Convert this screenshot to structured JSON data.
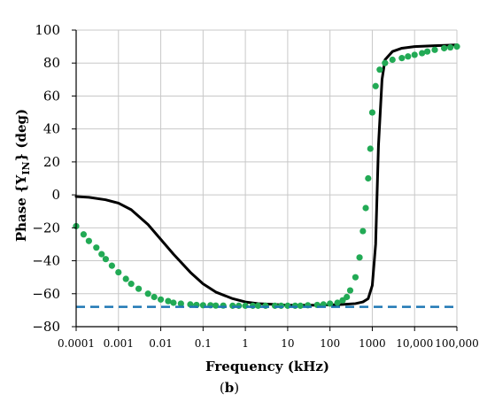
{
  "chart_data": {
    "type": "line",
    "xlabel": "Frequency (kHz)",
    "ylabel_prefix": "Phase {Y",
    "ylabel_sub": "IN",
    "ylabel_suffix": "} (deg)",
    "x_scale": "log",
    "xlim": [
      0.0001,
      100000
    ],
    "ylim": [
      -80,
      100
    ],
    "grid": true,
    "x_ticks": [
      {
        "value": 0.0001,
        "label": "0.0001"
      },
      {
        "value": 0.001,
        "label": "0.001"
      },
      {
        "value": 0.01,
        "label": "0.01"
      },
      {
        "value": 0.1,
        "label": "0.1"
      },
      {
        "value": 1,
        "label": "1"
      },
      {
        "value": 10,
        "label": "10"
      },
      {
        "value": 100,
        "label": "100"
      },
      {
        "value": 1000,
        "label": "1000"
      },
      {
        "value": 10000,
        "label": "10,000"
      },
      {
        "value": 100000,
        "label": "100,000"
      }
    ],
    "y_ticks": [
      {
        "value": 100,
        "label": "100"
      },
      {
        "value": 80,
        "label": "80"
      },
      {
        "value": 60,
        "label": "60"
      },
      {
        "value": 40,
        "label": "40"
      },
      {
        "value": 20,
        "label": "20"
      },
      {
        "value": 0,
        "label": "0"
      },
      {
        "value": -20,
        "label": "−20"
      },
      {
        "value": -40,
        "label": "−40"
      },
      {
        "value": -60,
        "label": "−60"
      },
      {
        "value": -80,
        "label": "−80"
      }
    ],
    "series": [
      {
        "style": "solid",
        "color": "#000000",
        "x": [
          0.0001,
          0.0002,
          0.0005,
          0.001,
          0.002,
          0.005,
          0.01,
          0.02,
          0.05,
          0.1,
          0.2,
          0.5,
          1,
          2,
          5,
          10,
          20,
          50,
          100,
          200,
          400,
          600,
          800,
          1000,
          1200,
          1400,
          1700,
          2000,
          3000,
          5000,
          10000,
          30000,
          100000
        ],
        "y": [
          -1,
          -1.5,
          -3,
          -5,
          -9,
          -18,
          -27,
          -36,
          -47,
          -54,
          -59,
          -63,
          -65,
          -66,
          -66.5,
          -67,
          -67,
          -67,
          -66.8,
          -66.5,
          -66,
          -65,
          -63,
          -55,
          -30,
          30,
          70,
          82,
          87,
          89,
          90,
          90.5,
          91
        ]
      },
      {
        "style": "dotted",
        "color": "#22aa55",
        "x": [
          0.0001,
          0.00015,
          0.0002,
          0.0003,
          0.0004,
          0.0005,
          0.0007,
          0.001,
          0.0015,
          0.002,
          0.003,
          0.005,
          0.007,
          0.01,
          0.015,
          0.02,
          0.03,
          0.05,
          0.07,
          0.1,
          0.15,
          0.2,
          0.3,
          0.5,
          0.7,
          1,
          1.5,
          2,
          3,
          5,
          7,
          10,
          15,
          20,
          30,
          50,
          70,
          100,
          150,
          200,
          250,
          300,
          400,
          500,
          600,
          700,
          800,
          900,
          1000,
          1200,
          1500,
          2000,
          3000,
          5000,
          7000,
          10000,
          15000,
          20000,
          30000,
          50000,
          70000,
          100000
        ],
        "y": [
          -19,
          -24,
          -28,
          -32,
          -36,
          -39,
          -43,
          -47,
          -51,
          -54,
          -57,
          -60,
          -62,
          -63.5,
          -64.5,
          -65.5,
          -66,
          -66.5,
          -66.8,
          -67,
          -67,
          -67.2,
          -67.2,
          -67.3,
          -67.3,
          -67.3,
          -67.3,
          -67.3,
          -67.3,
          -67.3,
          -67.3,
          -67.3,
          -67.3,
          -67.3,
          -67,
          -66.8,
          -66.5,
          -66,
          -65.5,
          -64,
          -62,
          -58,
          -50,
          -38,
          -22,
          -8,
          10,
          28,
          50,
          66,
          76,
          80,
          82,
          83,
          84,
          85,
          86,
          87,
          88,
          89,
          89.5,
          90
        ]
      },
      {
        "style": "dashed",
        "color": "#1f77b4",
        "x": [
          0.0001,
          100000
        ],
        "y": [
          -68,
          -68
        ]
      }
    ]
  },
  "caption": {
    "open": "(",
    "label": "b",
    "close": ")"
  }
}
